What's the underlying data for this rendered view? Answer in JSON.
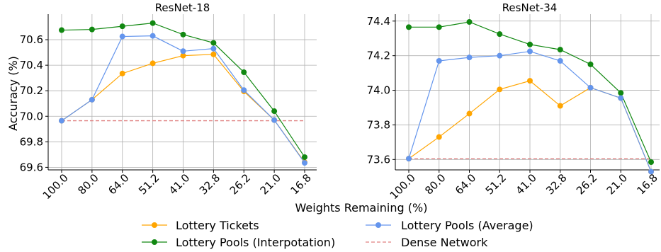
{
  "shared": {
    "xlabel": "Weights Remaining (%)",
    "ylabel": "Accuracy (%)",
    "x_categories": [
      "100.0",
      "80.0",
      "64.0",
      "51.2",
      "41.0",
      "32.8",
      "26.2",
      "21.0",
      "16.8"
    ]
  },
  "colors": {
    "lottery_tickets": "#FFA500",
    "lottery_pools_interpolation": "#118811",
    "lottery_pools_average": "#6495ED",
    "dense_network": "#E08080"
  },
  "legend": {
    "lottery_tickets": "Lottery Tickets",
    "lottery_pools_interpolation": "Lottery Pools (Interpotation)",
    "lottery_pools_average": "Lottery Pools (Average)",
    "dense_network": "Dense Network"
  },
  "chart_data": [
    {
      "type": "line",
      "title": "ResNet-18",
      "ylim": [
        69.58,
        70.8
      ],
      "yticks": [
        "69.6",
        "69.8",
        "70.0",
        "70.2",
        "70.4",
        "70.6"
      ],
      "series": [
        {
          "name": "Lottery Tickets",
          "values": [
            69.965,
            70.13,
            70.335,
            70.415,
            70.475,
            70.485,
            70.195,
            69.97,
            69.64
          ]
        },
        {
          "name": "Lottery Pools (Interpotation)",
          "values": [
            70.675,
            70.68,
            70.705,
            70.73,
            70.64,
            70.575,
            70.345,
            70.04,
            69.68
          ]
        },
        {
          "name": "Lottery Pools (Average)",
          "values": [
            69.965,
            70.13,
            70.625,
            70.63,
            70.51,
            70.53,
            70.205,
            69.97,
            69.635
          ]
        }
      ],
      "reference": {
        "name": "Dense Network",
        "value": 69.965
      }
    },
    {
      "type": "line",
      "title": "ResNet-34",
      "ylim": [
        73.54,
        74.44
      ],
      "yticks": [
        "73.6",
        "73.8",
        "74.0",
        "74.2",
        "74.4"
      ],
      "series": [
        {
          "name": "Lottery Tickets",
          "values": [
            73.605,
            73.73,
            73.865,
            74.005,
            74.055,
            73.91,
            74.015,
            73.955,
            73.53
          ]
        },
        {
          "name": "Lottery Pools (Interpotation)",
          "values": [
            74.365,
            74.365,
            74.395,
            74.325,
            74.265,
            74.235,
            74.15,
            73.985,
            73.585
          ]
        },
        {
          "name": "Lottery Pools (Average)",
          "values": [
            73.605,
            74.17,
            74.19,
            74.2,
            74.225,
            74.17,
            74.015,
            73.955,
            73.53
          ]
        }
      ],
      "reference": {
        "name": "Dense Network",
        "value": 73.605
      }
    }
  ]
}
